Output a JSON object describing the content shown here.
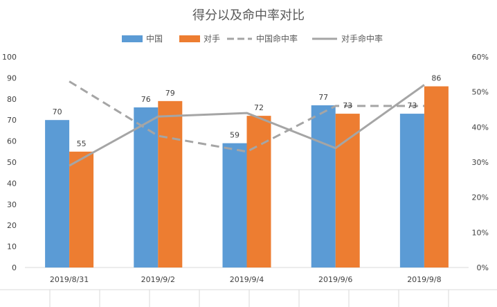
{
  "chart_data": {
    "type": "bar",
    "title": "得分以及命中率对比",
    "categories": [
      "2019/8/31",
      "2019/9/2",
      "2019/9/4",
      "2019/9/6",
      "2019/9/8"
    ],
    "series": [
      {
        "name": "中国",
        "kind": "bar",
        "axis": "left",
        "color": "#5B9BD5",
        "values": [
          70,
          76,
          59,
          77,
          73
        ]
      },
      {
        "name": "对手",
        "kind": "bar",
        "axis": "left",
        "color": "#ED7D31",
        "values": [
          55,
          79,
          72,
          73,
          86
        ]
      },
      {
        "name": "中国命中率",
        "kind": "line",
        "dash": true,
        "axis": "right",
        "color": "#A5A5A5",
        "values": [
          0.53,
          0.375,
          0.33,
          0.46,
          0.46
        ]
      },
      {
        "name": "对手命中率",
        "kind": "line",
        "dash": false,
        "axis": "right",
        "color": "#A5A5A5",
        "values": [
          0.29,
          0.43,
          0.44,
          0.34,
          0.52
        ]
      }
    ],
    "y_left": {
      "min": 0,
      "max": 100,
      "step": 10,
      "ticks": [
        "0",
        "10",
        "20",
        "30",
        "40",
        "50",
        "60",
        "70",
        "80",
        "90",
        "100"
      ]
    },
    "y_right": {
      "min": 0,
      "max": 0.6,
      "step": 0.1,
      "ticks": [
        "0%",
        "10%",
        "20%",
        "30%",
        "40%",
        "50%",
        "60%"
      ]
    },
    "grid": false,
    "legend": "top"
  }
}
